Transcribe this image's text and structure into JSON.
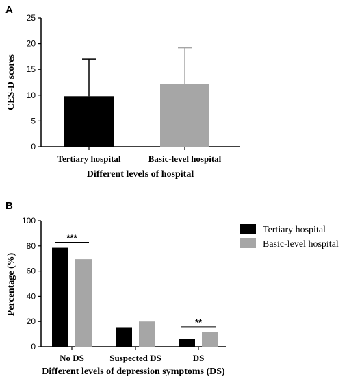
{
  "colors": {
    "primary": "#000000",
    "secondary": "#a6a6a6",
    "axis": "#000000",
    "background": "#ffffff"
  },
  "chart_data": [
    {
      "panel": "A",
      "type": "bar",
      "categories": [
        "Tertiary hospital",
        "Basic-level hospital"
      ],
      "values": [
        9.8,
        12.1
      ],
      "error_upper": [
        17.0,
        19.2
      ],
      "bar_colors": [
        "#000000",
        "#a6a6a6"
      ],
      "xlabel": "Different levels of hospital",
      "ylabel": "CES-D scores",
      "ylim": [
        0,
        25
      ],
      "yticks": [
        "0",
        "5",
        "10",
        "15",
        "20",
        "25"
      ],
      "grid": false
    },
    {
      "panel": "B",
      "type": "bar",
      "categories": [
        "No DS",
        "Suspected DS",
        "DS"
      ],
      "series": [
        {
          "name": "Tertiary hospital",
          "color": "#000000",
          "values": [
            78.5,
            15.5,
            6.5
          ]
        },
        {
          "name": "Basic-level hospital",
          "color": "#a6a6a6",
          "values": [
            69.5,
            20.0,
            11.5
          ]
        }
      ],
      "annotations": [
        {
          "category": "No DS",
          "text": "***"
        },
        {
          "category": "DS",
          "text": "**"
        }
      ],
      "xlabel": "Different levels of depression symptoms (DS)",
      "ylabel": "Percentage (%)",
      "ylim": [
        0,
        100
      ],
      "yticks": [
        "0",
        "20",
        "40",
        "60",
        "80",
        "100"
      ],
      "legend_position": "top-right",
      "grid": false
    }
  ]
}
